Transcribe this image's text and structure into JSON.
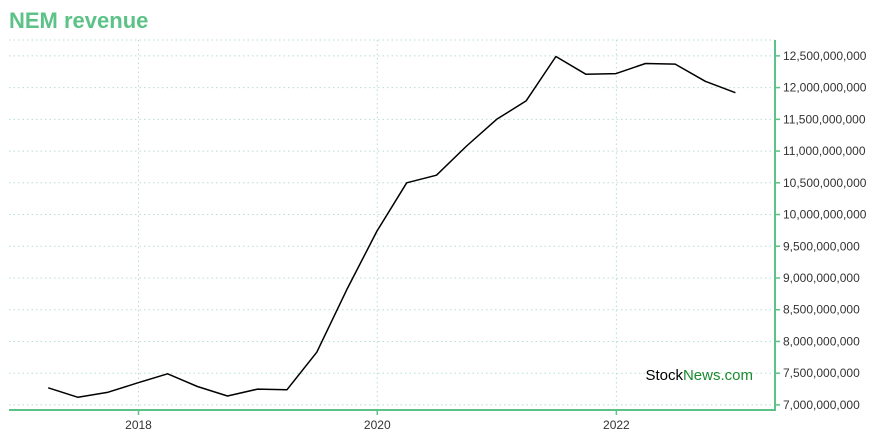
{
  "colors": {
    "accent": "#5cc287",
    "line": "#000000",
    "grid": "#b8dcd8",
    "watermark_dark": "#000000",
    "watermark_brand": "#1a8a2e"
  },
  "watermark": {
    "part1": "Stock",
    "part2": "News",
    "part3": ".com"
  },
  "chart_data": {
    "type": "line",
    "title": "NEM revenue",
    "xlabel": "",
    "ylabel": "",
    "x_ticks": [
      "2018",
      "2020",
      "2022"
    ],
    "y_ticks": [
      "7,000,000,000",
      "7,500,000,000",
      "8,000,000,000",
      "8,500,000,000",
      "9,000,000,000",
      "9,500,000,000",
      "10,000,000,000",
      "10,500,000,000",
      "11,000,000,000",
      "11,500,000,000",
      "12,000,000,000",
      "12,500,000,000"
    ],
    "ylim": [
      6920000000,
      12750000000
    ],
    "xlim": [
      "2016-12-01",
      "2023-05-01"
    ],
    "y_axis_position": "right",
    "grid": true,
    "series": [
      {
        "x": [
          "2017-03-31",
          "2017-06-30",
          "2017-09-30",
          "2017-12-31",
          "2018-03-31",
          "2018-06-30",
          "2018-09-30",
          "2018-12-31",
          "2019-03-31",
          "2019-06-30",
          "2019-09-30",
          "2019-12-31",
          "2020-03-31",
          "2020-06-30",
          "2020-09-30",
          "2020-12-31",
          "2021-03-31",
          "2021-06-30",
          "2021-09-30",
          "2021-12-31",
          "2022-03-31",
          "2022-06-30",
          "2022-09-30",
          "2022-12-31"
        ],
        "values": [
          7270000000,
          7120000000,
          7200000000,
          7350000000,
          7490000000,
          7290000000,
          7140000000,
          7250000000,
          7240000000,
          7830000000,
          8820000000,
          9740000000,
          10500000000,
          10620000000,
          11080000000,
          11500000000,
          11790000000,
          12490000000,
          12210000000,
          12220000000,
          12380000000,
          12370000000,
          12100000000,
          11920000000
        ]
      }
    ]
  }
}
